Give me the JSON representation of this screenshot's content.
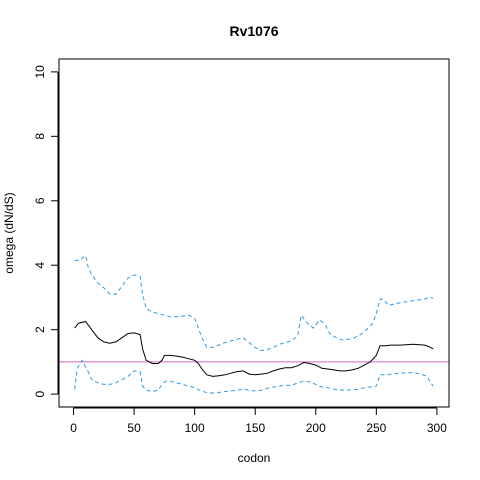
{
  "chart_data": {
    "type": "line",
    "title": "Rv1076",
    "xlabel": "codon",
    "ylabel": "omega (dN/dS)",
    "xlim": [
      -12,
      310
    ],
    "ylim": [
      -0.4,
      10.4
    ],
    "x_ticks": [
      0,
      50,
      100,
      150,
      200,
      250,
      300
    ],
    "y_ticks": [
      0,
      2,
      4,
      6,
      8,
      10
    ],
    "grid": false,
    "reference_line": {
      "y": 1,
      "color": "#cc66cc"
    },
    "series": [
      {
        "style": "solid",
        "color": "#000000",
        "points": [
          [
            1,
            2.05
          ],
          [
            4,
            2.2
          ],
          [
            10,
            2.25
          ],
          [
            15,
            2.0
          ],
          [
            20,
            1.75
          ],
          [
            25,
            1.62
          ],
          [
            30,
            1.58
          ],
          [
            35,
            1.62
          ],
          [
            40,
            1.75
          ],
          [
            45,
            1.88
          ],
          [
            50,
            1.9
          ],
          [
            55,
            1.85
          ],
          [
            57,
            1.4
          ],
          [
            60,
            1.05
          ],
          [
            65,
            0.95
          ],
          [
            70,
            0.95
          ],
          [
            73,
            1.05
          ],
          [
            75,
            1.2
          ],
          [
            80,
            1.2
          ],
          [
            85,
            1.18
          ],
          [
            90,
            1.15
          ],
          [
            95,
            1.1
          ],
          [
            100,
            1.05
          ],
          [
            103,
            0.95
          ],
          [
            106,
            0.78
          ],
          [
            110,
            0.6
          ],
          [
            115,
            0.55
          ],
          [
            120,
            0.57
          ],
          [
            125,
            0.6
          ],
          [
            130,
            0.65
          ],
          [
            135,
            0.7
          ],
          [
            140,
            0.72
          ],
          [
            145,
            0.62
          ],
          [
            150,
            0.6
          ],
          [
            155,
            0.62
          ],
          [
            160,
            0.65
          ],
          [
            165,
            0.72
          ],
          [
            170,
            0.78
          ],
          [
            175,
            0.82
          ],
          [
            180,
            0.82
          ],
          [
            185,
            0.88
          ],
          [
            190,
            0.98
          ],
          [
            195,
            0.95
          ],
          [
            200,
            0.9
          ],
          [
            205,
            0.8
          ],
          [
            210,
            0.78
          ],
          [
            215,
            0.75
          ],
          [
            220,
            0.72
          ],
          [
            225,
            0.72
          ],
          [
            230,
            0.75
          ],
          [
            235,
            0.8
          ],
          [
            240,
            0.9
          ],
          [
            245,
            1.0
          ],
          [
            250,
            1.2
          ],
          [
            253,
            1.5
          ],
          [
            258,
            1.5
          ],
          [
            262,
            1.52
          ],
          [
            270,
            1.52
          ],
          [
            280,
            1.55
          ],
          [
            290,
            1.52
          ],
          [
            295,
            1.45
          ],
          [
            297,
            1.4
          ]
        ]
      },
      {
        "style": "dashed",
        "color": "#3399e6",
        "points": [
          [
            1,
            4.15
          ],
          [
            5,
            4.15
          ],
          [
            10,
            4.3
          ],
          [
            12,
            3.95
          ],
          [
            15,
            3.7
          ],
          [
            20,
            3.45
          ],
          [
            25,
            3.3
          ],
          [
            30,
            3.1
          ],
          [
            35,
            3.1
          ],
          [
            40,
            3.35
          ],
          [
            45,
            3.6
          ],
          [
            50,
            3.7
          ],
          [
            55,
            3.65
          ],
          [
            57,
            3.1
          ],
          [
            60,
            2.65
          ],
          [
            65,
            2.55
          ],
          [
            70,
            2.5
          ],
          [
            75,
            2.45
          ],
          [
            80,
            2.4
          ],
          [
            85,
            2.4
          ],
          [
            90,
            2.42
          ],
          [
            95,
            2.45
          ],
          [
            100,
            2.35
          ],
          [
            103,
            2.05
          ],
          [
            106,
            1.75
          ],
          [
            110,
            1.45
          ],
          [
            115,
            1.45
          ],
          [
            120,
            1.52
          ],
          [
            125,
            1.6
          ],
          [
            130,
            1.65
          ],
          [
            135,
            1.7
          ],
          [
            140,
            1.75
          ],
          [
            145,
            1.6
          ],
          [
            150,
            1.45
          ],
          [
            155,
            1.35
          ],
          [
            160,
            1.38
          ],
          [
            165,
            1.45
          ],
          [
            170,
            1.55
          ],
          [
            175,
            1.6
          ],
          [
            180,
            1.65
          ],
          [
            185,
            1.8
          ],
          [
            188,
            2.45
          ],
          [
            193,
            2.2
          ],
          [
            198,
            2.05
          ],
          [
            203,
            2.3
          ],
          [
            207,
            2.2
          ],
          [
            212,
            1.85
          ],
          [
            217,
            1.75
          ],
          [
            222,
            1.68
          ],
          [
            227,
            1.7
          ],
          [
            232,
            1.75
          ],
          [
            237,
            1.85
          ],
          [
            242,
            2.0
          ],
          [
            247,
            2.2
          ],
          [
            250,
            2.5
          ],
          [
            253,
            2.95
          ],
          [
            256,
            2.95
          ],
          [
            260,
            2.75
          ],
          [
            265,
            2.8
          ],
          [
            272,
            2.85
          ],
          [
            280,
            2.9
          ],
          [
            290,
            2.95
          ],
          [
            293,
            3.0
          ],
          [
            297,
            2.98
          ]
        ]
      },
      {
        "style": "dashed",
        "color": "#3399e6",
        "points": [
          [
            1,
            0.15
          ],
          [
            3,
            0.8
          ],
          [
            7,
            1.05
          ],
          [
            12,
            0.7
          ],
          [
            15,
            0.45
          ],
          [
            20,
            0.35
          ],
          [
            25,
            0.3
          ],
          [
            30,
            0.3
          ],
          [
            35,
            0.35
          ],
          [
            40,
            0.45
          ],
          [
            45,
            0.55
          ],
          [
            50,
            0.72
          ],
          [
            55,
            0.7
          ],
          [
            57,
            0.25
          ],
          [
            60,
            0.12
          ],
          [
            65,
            0.08
          ],
          [
            70,
            0.12
          ],
          [
            73,
            0.3
          ],
          [
            76,
            0.4
          ],
          [
            80,
            0.4
          ],
          [
            85,
            0.35
          ],
          [
            90,
            0.3
          ],
          [
            95,
            0.25
          ],
          [
            100,
            0.2
          ],
          [
            105,
            0.1
          ],
          [
            110,
            0.05
          ],
          [
            115,
            0.03
          ],
          [
            120,
            0.05
          ],
          [
            125,
            0.08
          ],
          [
            130,
            0.1
          ],
          [
            135,
            0.12
          ],
          [
            140,
            0.15
          ],
          [
            145,
            0.12
          ],
          [
            150,
            0.1
          ],
          [
            155,
            0.12
          ],
          [
            160,
            0.18
          ],
          [
            165,
            0.22
          ],
          [
            170,
            0.25
          ],
          [
            175,
            0.27
          ],
          [
            180,
            0.27
          ],
          [
            185,
            0.35
          ],
          [
            190,
            0.4
          ],
          [
            195,
            0.38
          ],
          [
            200,
            0.3
          ],
          [
            205,
            0.22
          ],
          [
            210,
            0.2
          ],
          [
            215,
            0.15
          ],
          [
            220,
            0.13
          ],
          [
            225,
            0.12
          ],
          [
            230,
            0.13
          ],
          [
            235,
            0.15
          ],
          [
            240,
            0.2
          ],
          [
            245,
            0.22
          ],
          [
            250,
            0.25
          ],
          [
            253,
            0.6
          ],
          [
            258,
            0.6
          ],
          [
            262,
            0.62
          ],
          [
            270,
            0.65
          ],
          [
            280,
            0.67
          ],
          [
            287,
            0.62
          ],
          [
            292,
            0.55
          ],
          [
            295,
            0.35
          ],
          [
            297,
            0.25
          ]
        ]
      }
    ]
  }
}
